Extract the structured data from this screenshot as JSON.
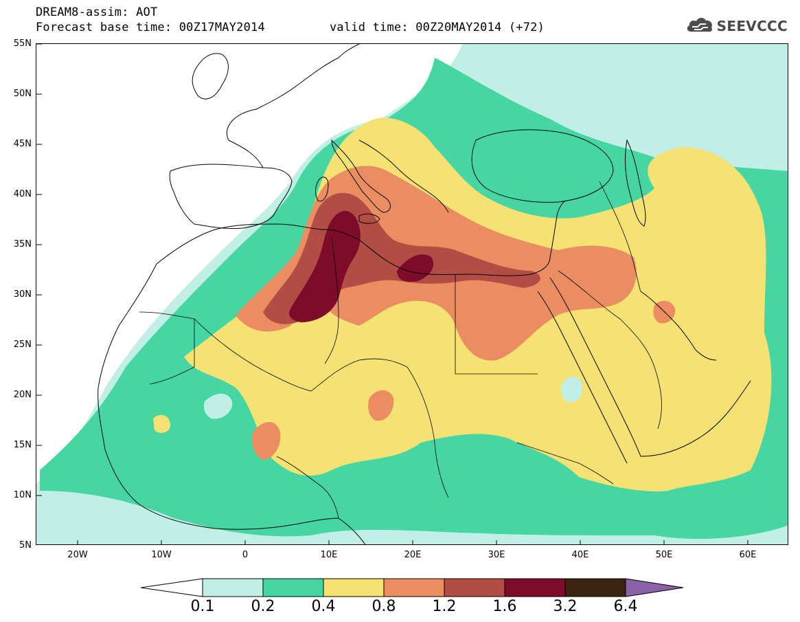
{
  "header": {
    "title_line1": "DREAM8-assim: AOT",
    "title_line2": "Forecast base time: 00Z17MAY2014",
    "valid_time": "valid time: 00Z20MAY2014 (+72)"
  },
  "logo": {
    "text": "SEEVCCC",
    "icon": "cloud-icon"
  },
  "map": {
    "lat_labels": [
      "55N",
      "50N",
      "45N",
      "40N",
      "35N",
      "30N",
      "25N",
      "20N",
      "15N",
      "10N",
      "5N"
    ],
    "lon_labels": [
      "20W",
      "10W",
      "0",
      "10E",
      "20E",
      "30E",
      "40E",
      "50E",
      "60E"
    ],
    "lat_range": [
      5,
      55
    ],
    "lon_range": [
      -25,
      65
    ]
  },
  "legend": {
    "levels": [
      "0.1",
      "0.2",
      "0.4",
      "0.8",
      "1.2",
      "1.6",
      "3.2",
      "6.4"
    ],
    "colors": [
      "#ffffff",
      "#c1efe5",
      "#45d6a4",
      "#f5e272",
      "#ea8e62",
      "#b24d45",
      "#7d0b2a",
      "#3b2312",
      "#8b62a8"
    ]
  }
}
